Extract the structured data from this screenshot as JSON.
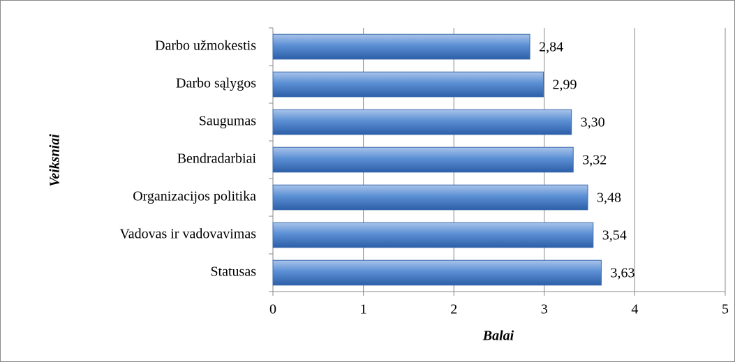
{
  "chart_data": {
    "type": "bar",
    "orientation": "horizontal",
    "x_label": "Balai",
    "y_label": "Veiksniai",
    "categories": [
      "Darbo užmokestis",
      "Darbo sąlygos",
      "Saugumas",
      "Bendradarbiai",
      "Organizacijos politika",
      "Vadovas ir vadovavimas",
      "Statusas"
    ],
    "values": [
      2.84,
      2.99,
      3.3,
      3.32,
      3.48,
      3.54,
      3.63
    ],
    "value_labels": [
      "2,84",
      "2,99",
      "3,30",
      "3,32",
      "3,48",
      "3,54",
      "3,63"
    ],
    "color": "#4f81bd",
    "xlim": [
      0,
      5
    ],
    "xticks": [
      0,
      1,
      2,
      3,
      4,
      5
    ],
    "grid": true
  }
}
